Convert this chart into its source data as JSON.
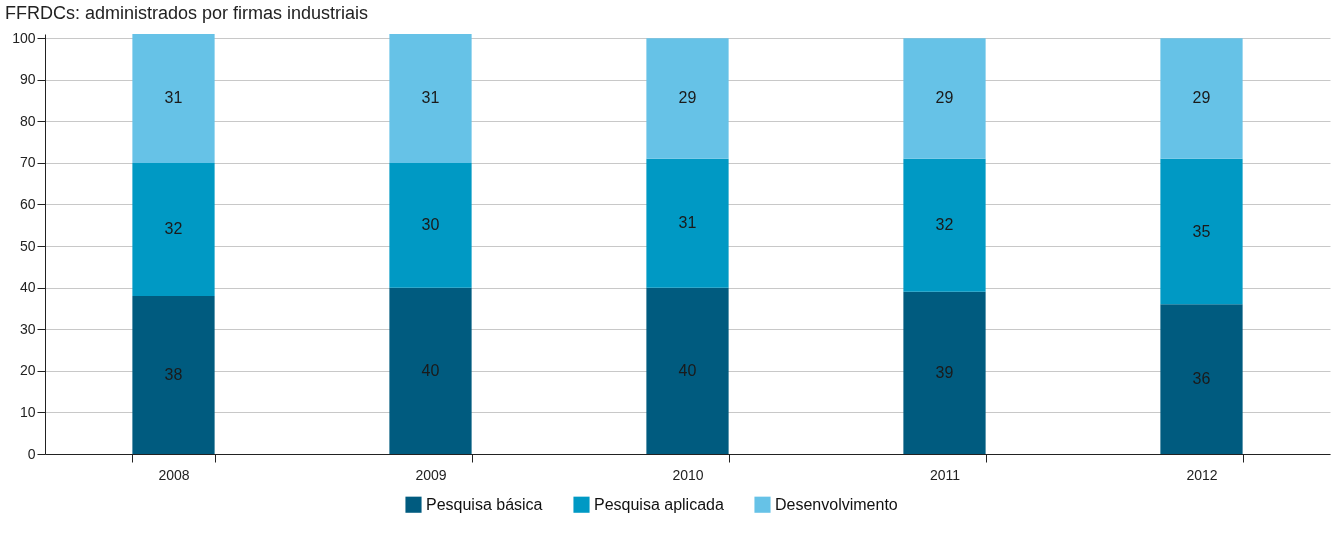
{
  "chart_data": {
    "type": "bar",
    "title": "FFRDCs: administrados por firmas industriais",
    "stacked": true,
    "data_labels": true,
    "categories": [
      "2008",
      "2009",
      "2010",
      "2011",
      "2012"
    ],
    "series": [
      {
        "name": "Pesquisa básica",
        "color": "#005b7f",
        "values": [
          38,
          40,
          40,
          39,
          36
        ]
      },
      {
        "name": "Pesquisa aplicada",
        "color": "#0099c4",
        "values": [
          32,
          30,
          31,
          32,
          35
        ]
      },
      {
        "name": "Desenvolvimento",
        "color": "#66c2e7",
        "values": [
          31,
          31,
          29,
          29,
          29
        ]
      }
    ],
    "ylim": [
      0,
      101
    ],
    "yticks": [
      0,
      10,
      20,
      30,
      40,
      50,
      60,
      70,
      80,
      90,
      100
    ],
    "grid": "y",
    "legend": "bottom"
  }
}
